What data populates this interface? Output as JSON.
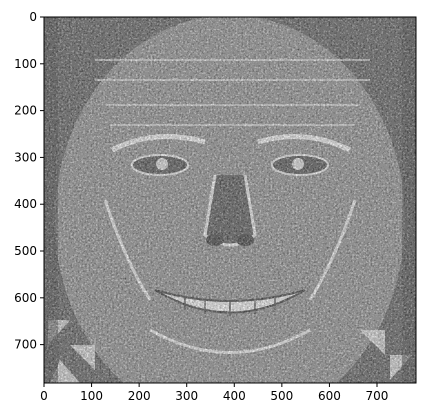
{
  "figure": {
    "image_description_name": "edge-filtered-face",
    "colormap": "gray",
    "x_ticks": [
      "0",
      "100",
      "200",
      "300",
      "400",
      "500",
      "600",
      "700"
    ],
    "y_ticks": [
      "0",
      "100",
      "200",
      "300",
      "400",
      "500",
      "600",
      "700"
    ],
    "x_tick_values": [
      0,
      100,
      200,
      300,
      400,
      500,
      600,
      700
    ],
    "y_tick_values": [
      0,
      100,
      200,
      300,
      400,
      500,
      600,
      700
    ],
    "x_range": [
      0,
      782
    ],
    "y_range": [
      0,
      782
    ],
    "colors": {
      "axes": "#000000",
      "background": "#ffffff"
    }
  }
}
